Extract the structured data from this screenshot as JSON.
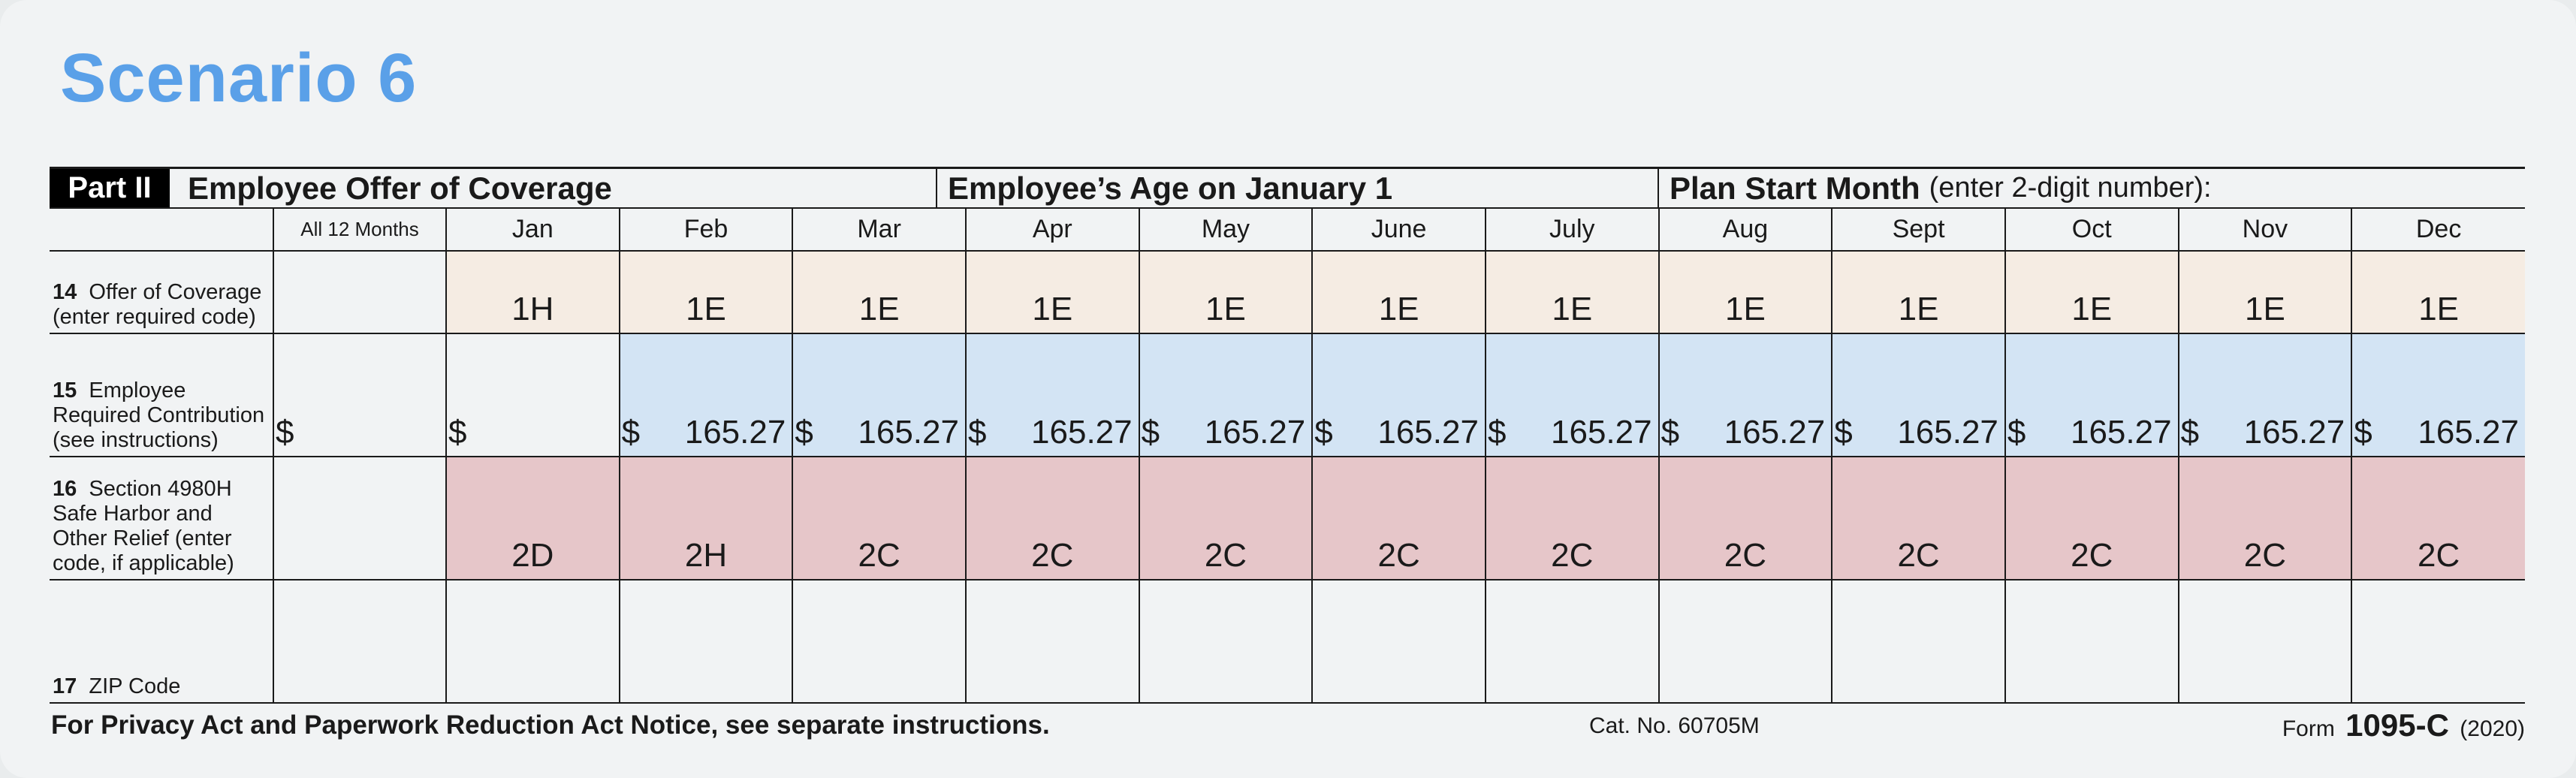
{
  "title": "Scenario 6",
  "header": {
    "part": "Part II",
    "offer_title": "Employee Offer of Coverage",
    "age_title": "Employee’s Age on January 1",
    "plan_title": "Plan Start Month",
    "plan_sub": "(enter 2-digit number):"
  },
  "columns": {
    "all12": "All 12 Months",
    "months": [
      "Jan",
      "Feb",
      "Mar",
      "Apr",
      "May",
      "June",
      "July",
      "Aug",
      "Sept",
      "Oct",
      "Nov",
      "Dec"
    ]
  },
  "rows": {
    "offer": {
      "num": "14",
      "label": "Offer of Coverage (enter required code)",
      "all12": "",
      "values": [
        "1H",
        "1E",
        "1E",
        "1E",
        "1E",
        "1E",
        "1E",
        "1E",
        "1E",
        "1E",
        "1E",
        "1E"
      ]
    },
    "contribution": {
      "num": "15",
      "label": "Employee Required Contribution (see instructions)",
      "currency": "$",
      "all12": "",
      "values": [
        "",
        "165.27",
        "165.27",
        "165.27",
        "165.27",
        "165.27",
        "165.27",
        "165.27",
        "165.27",
        "165.27",
        "165.27",
        "165.27"
      ]
    },
    "relief": {
      "num": "16",
      "label": "Section 4980H Safe Harbor and Other Relief (enter code, if applicable)",
      "all12": "",
      "values": [
        "2D",
        "2H",
        "2C",
        "2C",
        "2C",
        "2C",
        "2C",
        "2C",
        "2C",
        "2C",
        "2C",
        "2C"
      ]
    },
    "zip": {
      "num": "17",
      "label": "ZIP Code"
    }
  },
  "footer": {
    "privacy": "For Privacy Act and Paperwork Reduction Act Notice, see separate instructions.",
    "cat": "Cat. No. 60705M",
    "form_prefix": "Form",
    "form_number": "1095-C",
    "year": "(2020)"
  },
  "colors": {
    "title": "#5aa0e8",
    "offer_bg": "#f5ece3",
    "contribution_bg": "#d3e4f4",
    "relief_bg": "#e6c6c9"
  }
}
